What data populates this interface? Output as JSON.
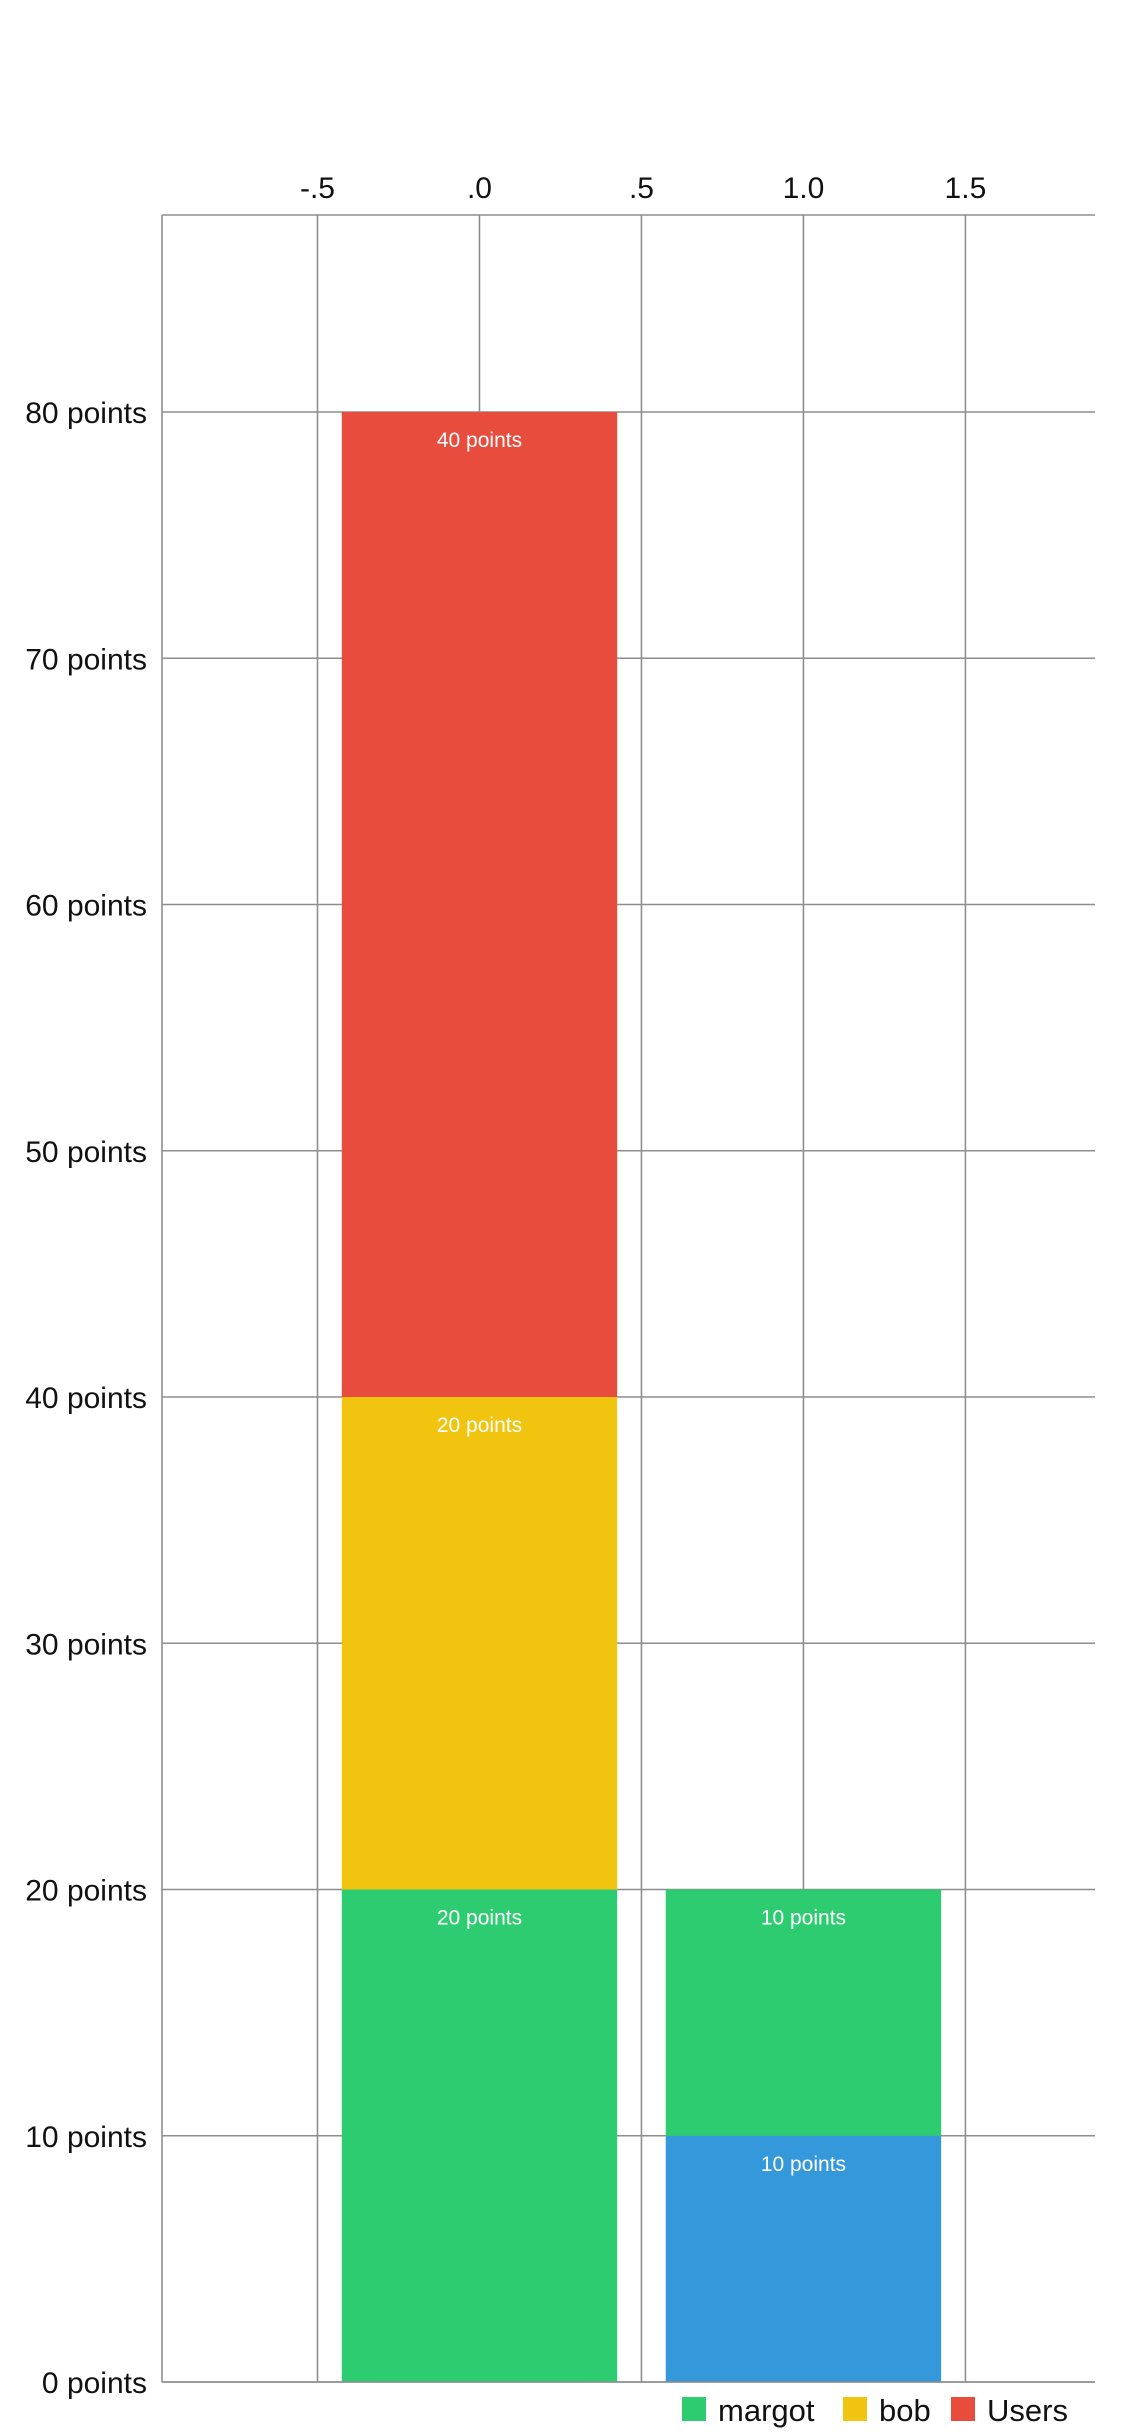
{
  "chart_data": {
    "type": "bar",
    "stacked": true,
    "x_ticks": [
      {
        "value": -0.5,
        "label": "-.5"
      },
      {
        "value": 0.0,
        "label": ".0"
      },
      {
        "value": 0.5,
        "label": ".5"
      },
      {
        "value": 1.0,
        "label": "1.0"
      },
      {
        "value": 1.5,
        "label": "1.5"
      }
    ],
    "y_ticks": [
      {
        "value": 0,
        "label": "0 points"
      },
      {
        "value": 10,
        "label": "10 points"
      },
      {
        "value": 20,
        "label": "20 points"
      },
      {
        "value": 30,
        "label": "30 points"
      },
      {
        "value": 40,
        "label": "40 points"
      },
      {
        "value": 50,
        "label": "50 points"
      },
      {
        "value": 60,
        "label": "60 points"
      },
      {
        "value": 70,
        "label": "70 points"
      },
      {
        "value": 80,
        "label": "80 points"
      }
    ],
    "xlim": [
      -0.98,
      1.9
    ],
    "ylim": [
      0,
      88
    ],
    "bar_width": 0.85,
    "x_axis_position": "top",
    "grid": true,
    "legend_position": "bottom-right",
    "legend": [
      {
        "name": "margot",
        "color": "#2ecc71"
      },
      {
        "name": "bob",
        "color": "#f1c40f"
      },
      {
        "name": "Users",
        "color": "#e74c3c"
      }
    ],
    "segments": [
      {
        "x": 0,
        "from": 0,
        "to": 20,
        "value": 20,
        "label": "20 points",
        "color": "#2ecc71"
      },
      {
        "x": 0,
        "from": 20,
        "to": 40,
        "value": 20,
        "label": "20 points",
        "color": "#f1c40f"
      },
      {
        "x": 0,
        "from": 40,
        "to": 80,
        "value": 40,
        "label": "40 points",
        "color": "#e74c3c"
      },
      {
        "x": 1,
        "from": 0,
        "to": 10,
        "value": 10,
        "label": "10 points",
        "color": "#3498db"
      },
      {
        "x": 1,
        "from": 10,
        "to": 20,
        "value": 10,
        "label": "10 points",
        "color": "#2ecc71"
      }
    ]
  }
}
